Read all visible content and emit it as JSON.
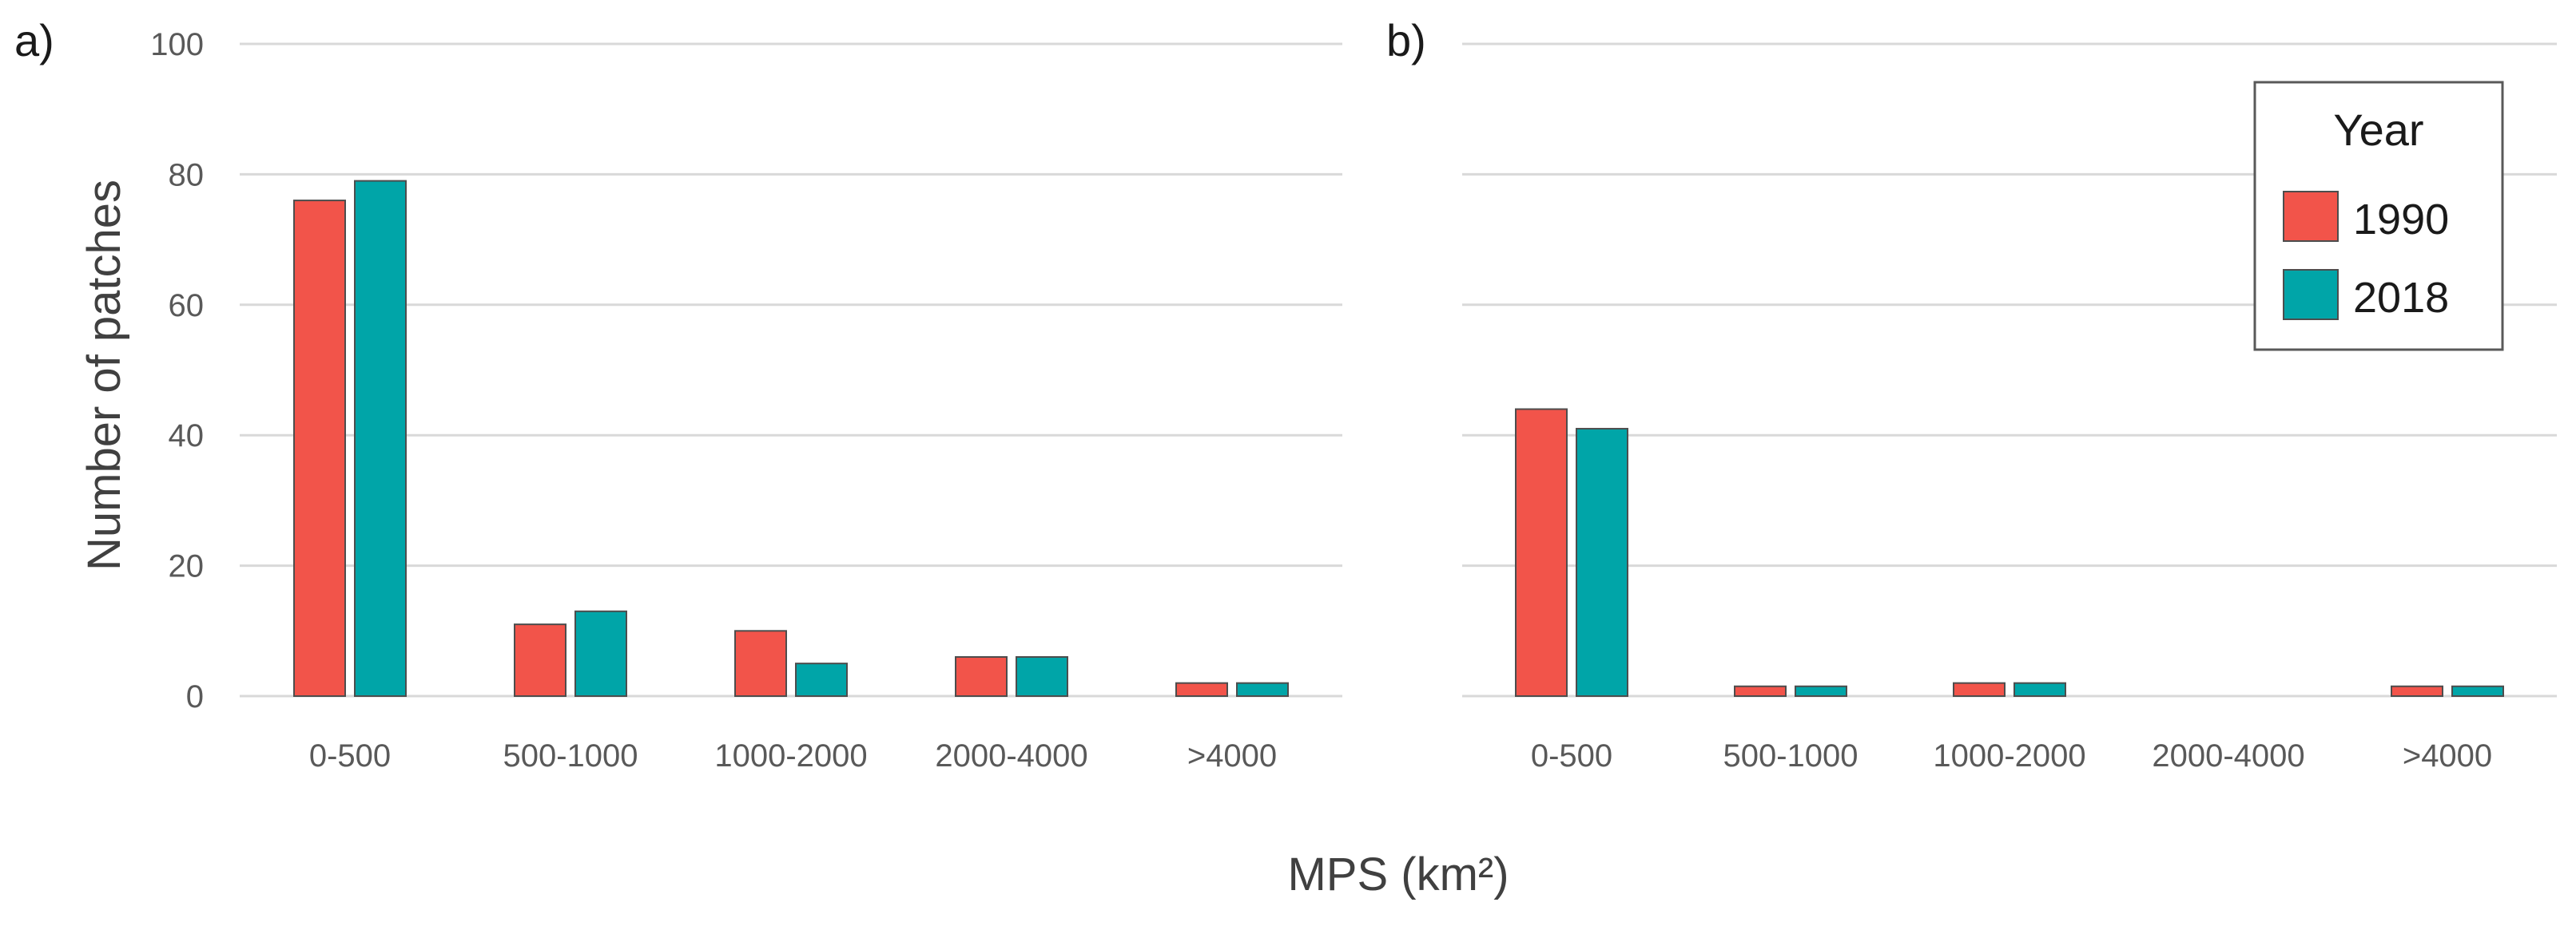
{
  "chart_data": [
    {
      "type": "bar",
      "panel_label": "a)",
      "categories": [
        "0-500",
        "500-1000",
        "1000-2000",
        "2000-4000",
        ">4000"
      ],
      "series": [
        {
          "name": "1990",
          "values": [
            76,
            11,
            10,
            6,
            2
          ]
        },
        {
          "name": "2018",
          "values": [
            79,
            13,
            5,
            6,
            2
          ]
        }
      ],
      "ylabel": "Number of patches",
      "yticks": [
        0,
        20,
        40,
        60,
        80,
        100
      ],
      "ylim": [
        0,
        100
      ],
      "grid": true
    },
    {
      "type": "bar",
      "panel_label": "b)",
      "categories": [
        "0-500",
        "500-1000",
        "1000-2000",
        "2000-4000",
        ">4000"
      ],
      "series": [
        {
          "name": "1990",
          "values": [
            44,
            1.5,
            2,
            0,
            1.5
          ]
        },
        {
          "name": "2018",
          "values": [
            41,
            1.5,
            2,
            0,
            1.5
          ]
        }
      ],
      "ylim": [
        0,
        100
      ],
      "grid": true
    }
  ],
  "xlabel": "MPS (km²)",
  "legend": {
    "title": "Year",
    "placement": "top-right",
    "items": [
      {
        "label": "1990",
        "color": "#F2544A"
      },
      {
        "label": "2018",
        "color": "#00A5A8"
      }
    ]
  },
  "colors": {
    "series_1990": "#F2544A",
    "series_2018": "#00A5A8",
    "grid": "#D9D9D9",
    "bar_stroke": "#4d4d4d"
  }
}
